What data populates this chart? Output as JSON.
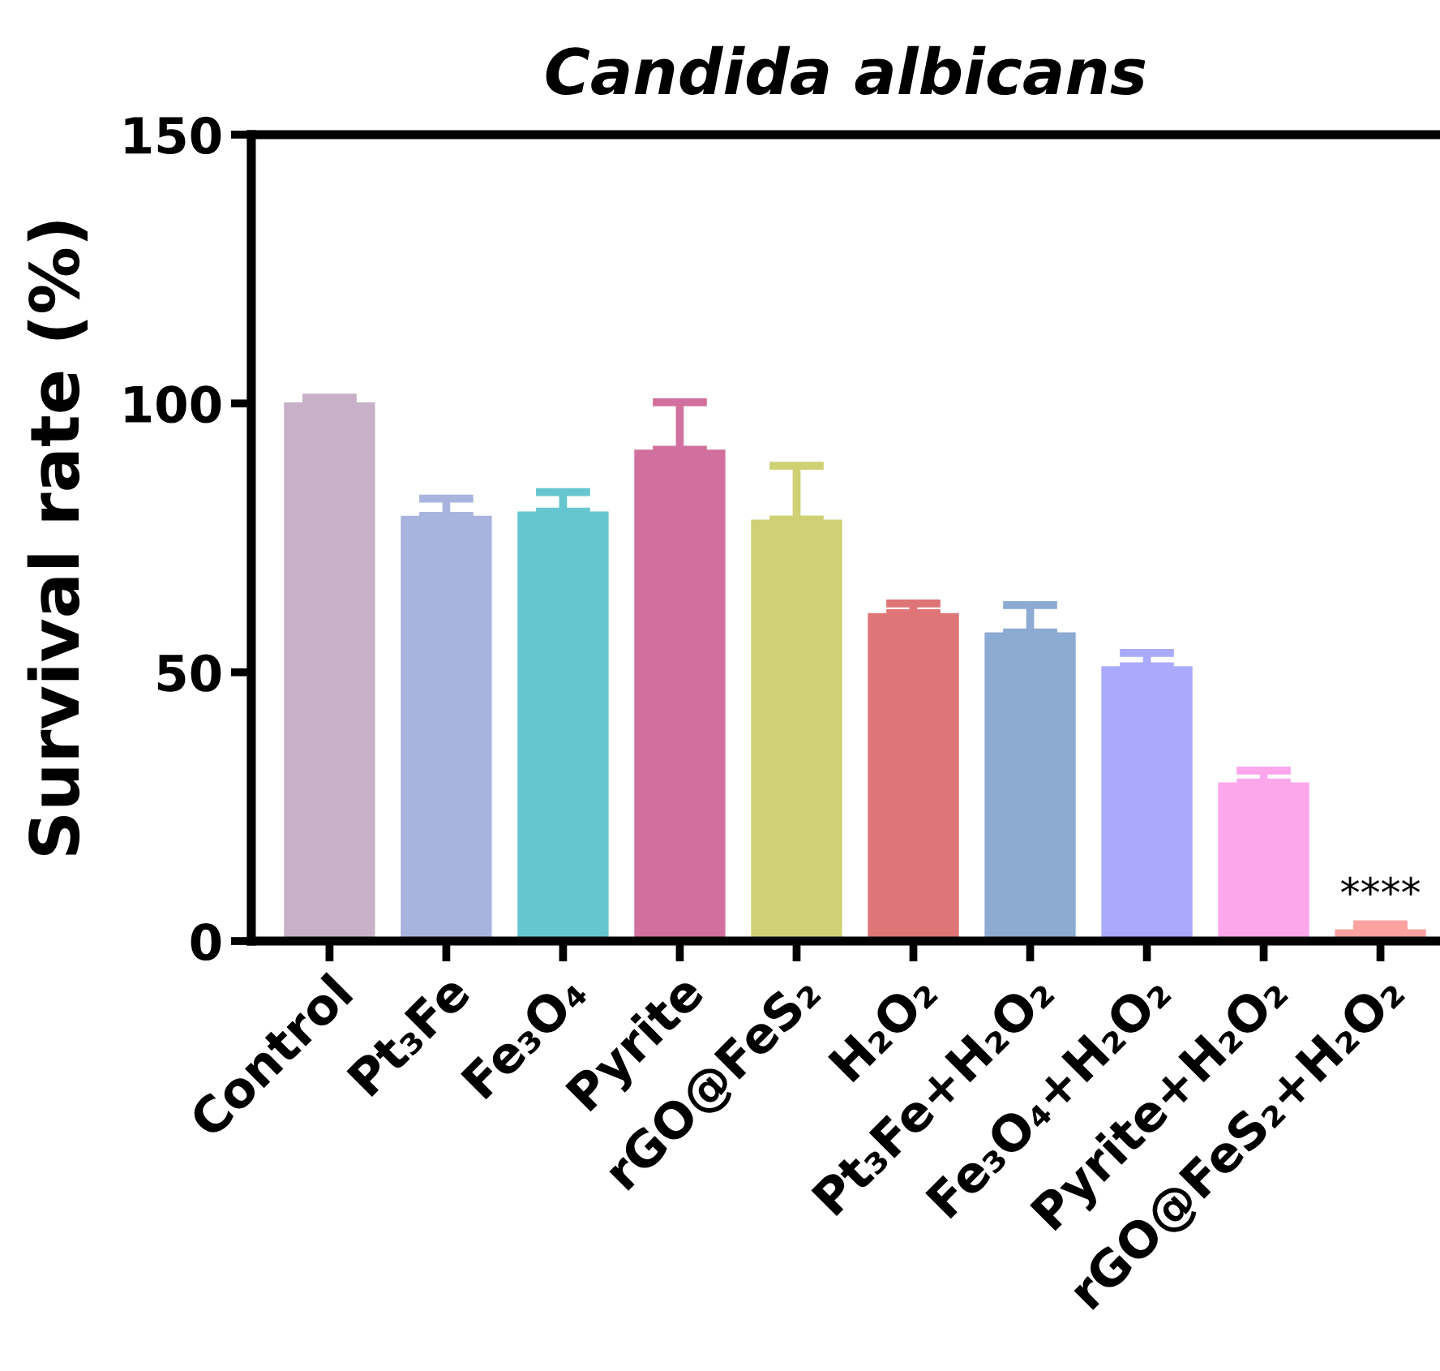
{
  "chart_data": {
    "type": "bar",
    "title": "Candida albicans",
    "ylabel": "Survival rate (%)",
    "categories": [
      "Control",
      "Pt₃Fe",
      "Fe₃O₄",
      "Pyrite",
      "rGO@FeS₂",
      "H₂O₂",
      "Pt₃Fe+H₂O₂",
      "Fe₃O₄+H₂O₂",
      "Pyrite+H₂O₂",
      "rGO@FeS₂+H₂O₂"
    ],
    "values": [
      100.2,
      79.1,
      79.9,
      91.4,
      78.4,
      61.0,
      57.4,
      51.1,
      29.5,
      2.2
    ],
    "errors": [
      [
        100.2,
        101.1
      ],
      [
        79.1,
        82.3
      ],
      [
        79.9,
        83.5
      ],
      [
        91.4,
        100.2
      ],
      [
        78.4,
        88.4
      ],
      [
        61.0,
        62.8
      ],
      [
        57.4,
        62.5
      ],
      [
        51.1,
        53.6
      ],
      [
        29.5,
        31.7
      ],
      [
        2.2,
        3.1
      ]
    ],
    "colors": [
      "#c8b1c8",
      "#a8b4de",
      "#66c6cf",
      "#d1709e",
      "#cfd175",
      "#de7576",
      "#8caad2",
      "#aaaafc",
      "#fca6ec",
      "#fca2a0"
    ],
    "ylim": [
      0,
      150
    ],
    "yticks": [
      0,
      50,
      100,
      150
    ],
    "grid": false,
    "legend": false,
    "annotations": [
      {
        "text": "****",
        "x": "rGO@FeS₂+H₂O₂",
        "y": 3.1
      }
    ]
  }
}
